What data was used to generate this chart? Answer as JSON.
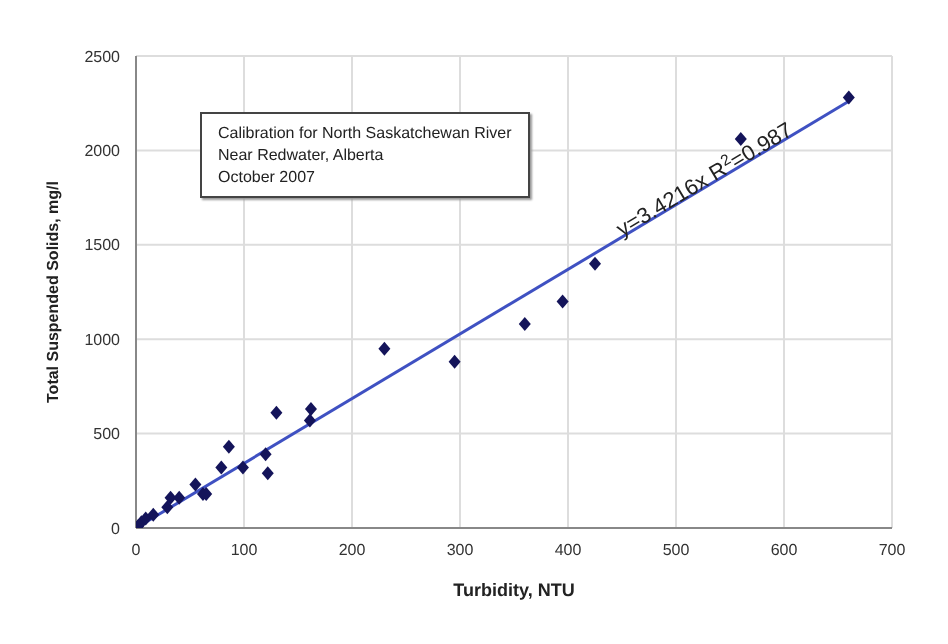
{
  "chart_data": {
    "type": "scatter",
    "xlabel": "Turbidity, NTU",
    "ylabel": "Total Suspended Solids, mg/l",
    "xlim": [
      0,
      700
    ],
    "xticks": [
      0,
      100,
      200,
      300,
      400,
      500,
      600,
      700
    ],
    "ylim": [
      0,
      2500
    ],
    "yticks": [
      0,
      500,
      1000,
      1500,
      2000,
      2500
    ],
    "grid": true,
    "marker": "diamond",
    "annotations": [
      "Calibration for North Saskatchewan River",
      "Near Redwater, Alberta",
      "October 2007",
      {
        "text": "y=3.4216x  R$^{2}$=0.987",
        "x": 450,
        "y": 1540
      }
    ],
    "series": [
      {
        "type": "line",
        "color": "#3f51c2",
        "marker": "none",
        "x": [
          0,
          660
        ],
        "values": [
          0,
          2260
        ]
      },
      {
        "color": "#14145a",
        "x": [
          2,
          5,
          9,
          16,
          29,
          32,
          40,
          55,
          62,
          65,
          79,
          86,
          99,
          120,
          122,
          130,
          161,
          162,
          230,
          295,
          360,
          395,
          425,
          560,
          660
        ],
        "values": [
          10,
          30,
          50,
          70,
          110,
          160,
          160,
          230,
          180,
          180,
          320,
          430,
          320,
          390,
          290,
          610,
          570,
          630,
          950,
          880,
          1080,
          1200,
          1400,
          2060,
          2280
        ]
      }
    ]
  }
}
